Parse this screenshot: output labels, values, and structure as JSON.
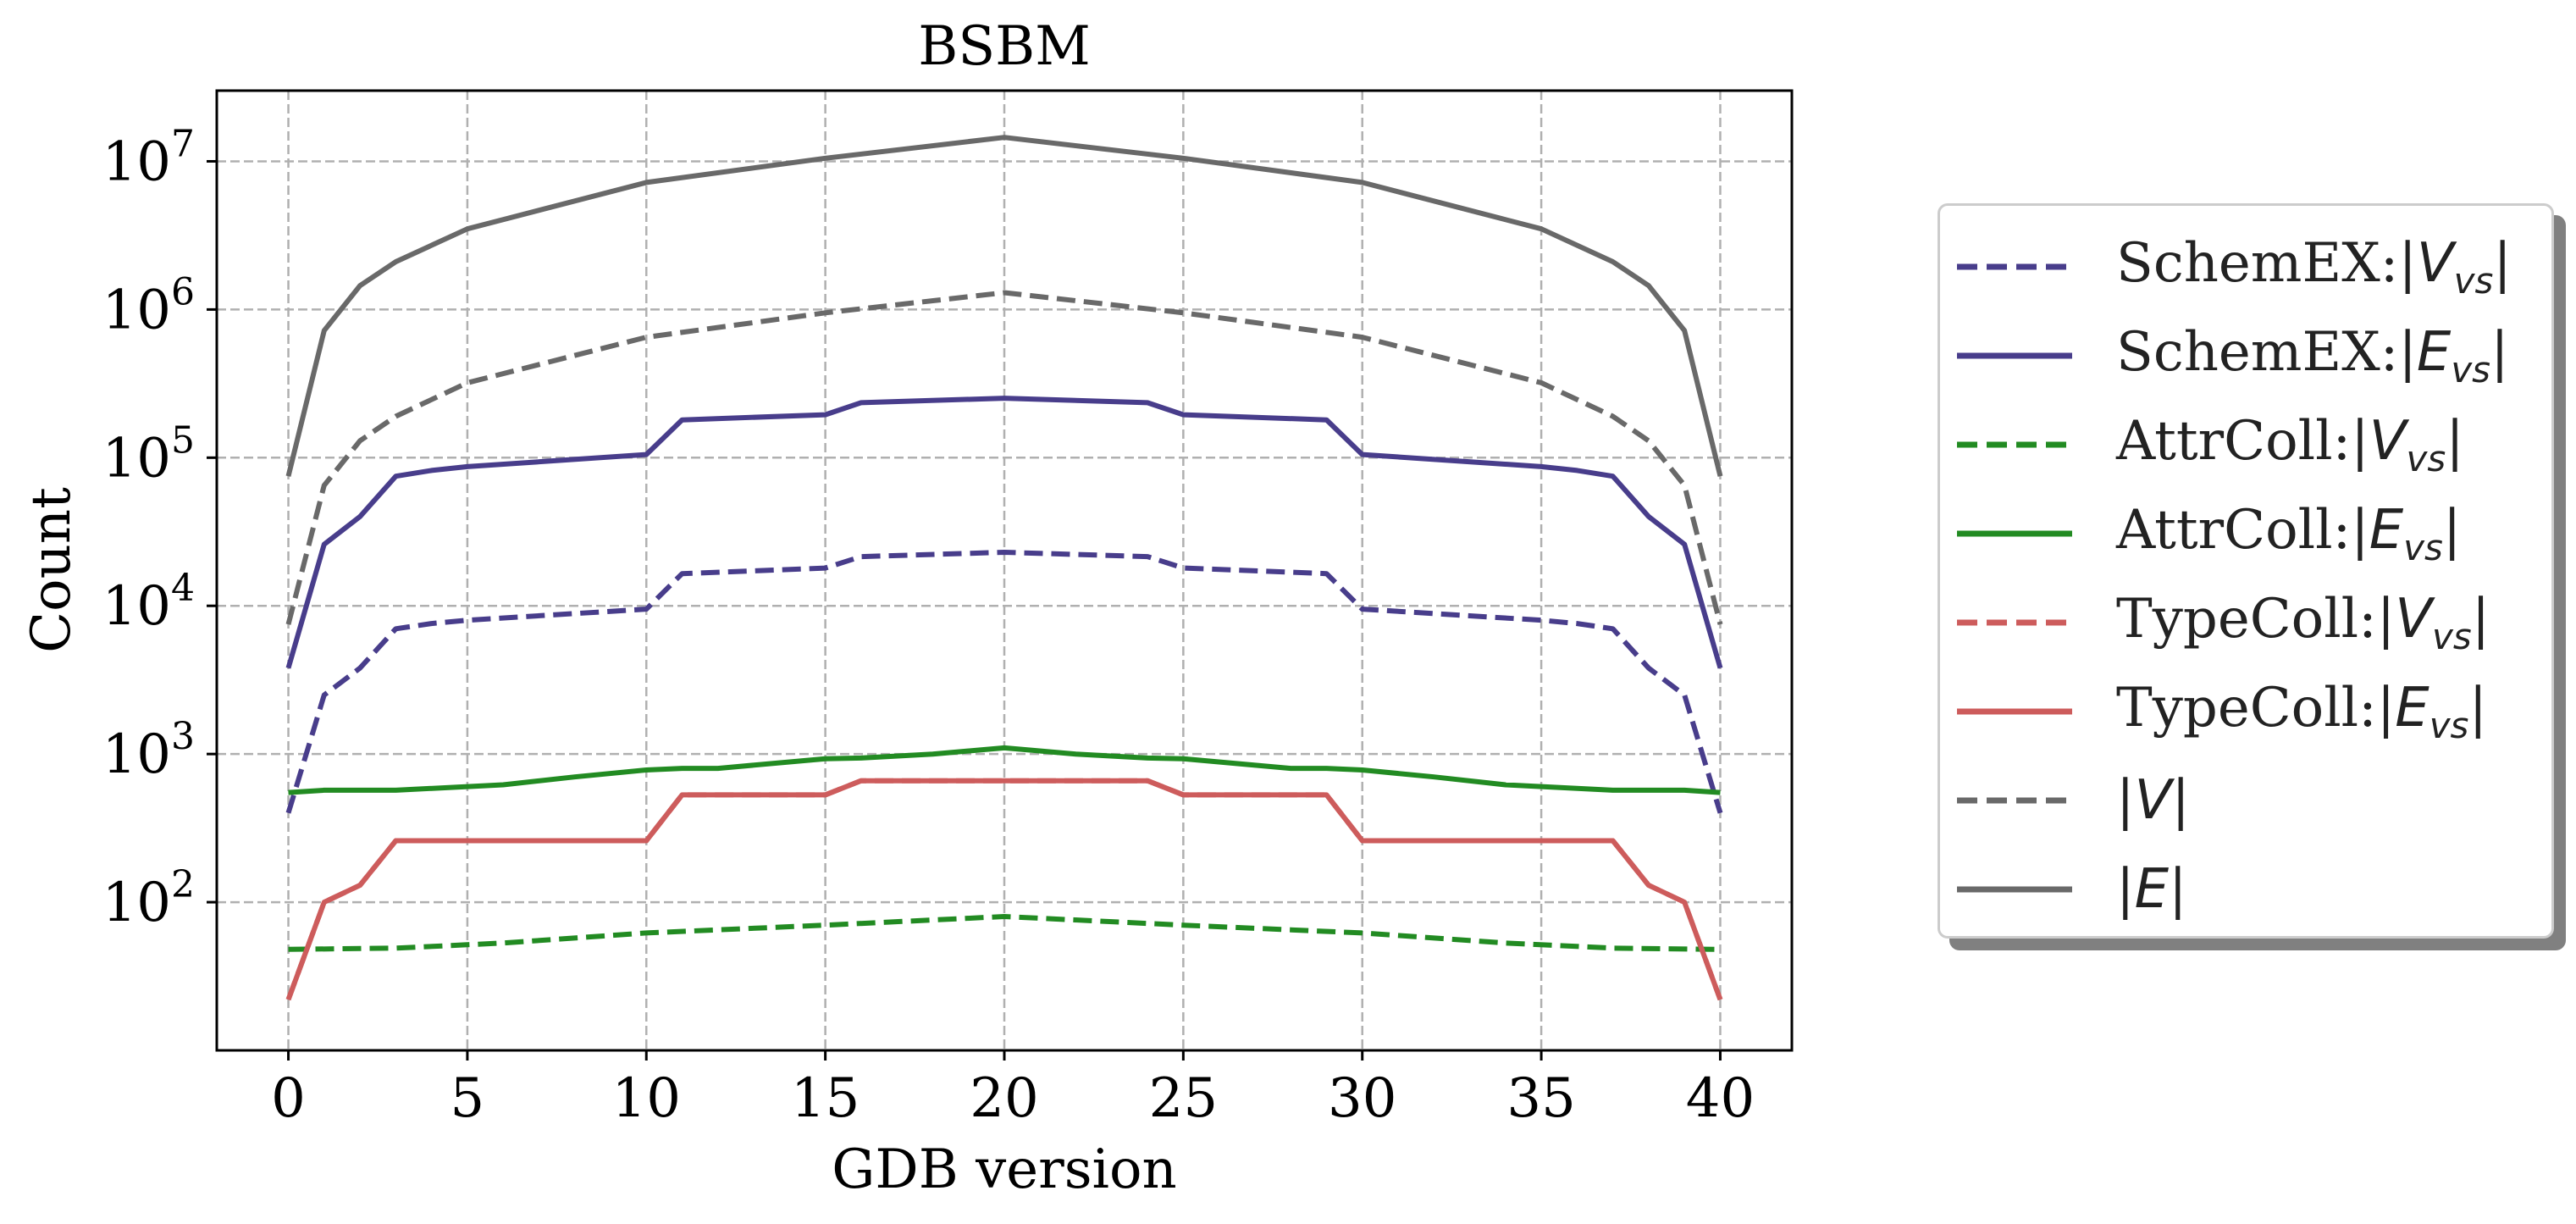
{
  "chart_data": {
    "type": "line",
    "title": "BSBM",
    "xlabel": "GDB version",
    "ylabel": "Count",
    "xlim": [
      -2,
      42
    ],
    "ylim": [
      10,
      30000000
    ],
    "yscale": "log",
    "xticks": [
      0,
      5,
      10,
      15,
      20,
      25,
      30,
      35,
      40
    ],
    "yticks": [
      100,
      1000,
      10000,
      100000,
      1000000,
      10000000
    ],
    "ytick_labels": [
      {
        "base": "10",
        "exp": "2"
      },
      {
        "base": "10",
        "exp": "3"
      },
      {
        "base": "10",
        "exp": "4"
      },
      {
        "base": "10",
        "exp": "5"
      },
      {
        "base": "10",
        "exp": "6"
      },
      {
        "base": "10",
        "exp": "7"
      }
    ],
    "grid": true,
    "legend_position": "outside-right",
    "series": [
      {
        "name": "SchemEX:|V_vs|",
        "label_prefix": "SchemEX:",
        "var": "V",
        "sub": "vs",
        "color": "#483d8b",
        "dash": true,
        "points": [
          [
            0,
            400
          ],
          [
            1,
            2500
          ],
          [
            2,
            3800
          ],
          [
            3,
            7000
          ],
          [
            4,
            7600
          ],
          [
            5,
            8000
          ],
          [
            10,
            9500
          ],
          [
            11,
            16500
          ],
          [
            15,
            18000
          ],
          [
            16,
            21500
          ],
          [
            20,
            23000
          ],
          [
            24,
            21500
          ],
          [
            25,
            18000
          ],
          [
            29,
            16500
          ],
          [
            30,
            9500
          ],
          [
            35,
            8000
          ],
          [
            36,
            7600
          ],
          [
            37,
            7000
          ],
          [
            38,
            3800
          ],
          [
            39,
            2500
          ],
          [
            40,
            400
          ]
        ]
      },
      {
        "name": "SchemEX:|E_vs|",
        "label_prefix": "SchemEX:",
        "var": "E",
        "sub": "vs",
        "color": "#483d8b",
        "dash": false,
        "points": [
          [
            0,
            3800
          ],
          [
            1,
            26000
          ],
          [
            2,
            40000
          ],
          [
            3,
            75000
          ],
          [
            4,
            82000
          ],
          [
            5,
            87000
          ],
          [
            10,
            105000
          ],
          [
            11,
            180000
          ],
          [
            15,
            195000
          ],
          [
            16,
            235000
          ],
          [
            20,
            252000
          ],
          [
            24,
            235000
          ],
          [
            25,
            195000
          ],
          [
            29,
            180000
          ],
          [
            30,
            105000
          ],
          [
            35,
            87000
          ],
          [
            36,
            82000
          ],
          [
            37,
            75000
          ],
          [
            38,
            40000
          ],
          [
            39,
            26000
          ],
          [
            40,
            3800
          ]
        ]
      },
      {
        "name": "AttrColl:|V_vs|",
        "label_prefix": "AttrColl:",
        "var": "V",
        "sub": "vs",
        "color": "#228b22",
        "dash": true,
        "points": [
          [
            0,
            48
          ],
          [
            3,
            49
          ],
          [
            6,
            53
          ],
          [
            10,
            62
          ],
          [
            15,
            70
          ],
          [
            20,
            80
          ],
          [
            25,
            70
          ],
          [
            30,
            62
          ],
          [
            34,
            53
          ],
          [
            37,
            49
          ],
          [
            40,
            48
          ]
        ]
      },
      {
        "name": "AttrColl:|E_vs|",
        "label_prefix": "AttrColl:",
        "var": "E",
        "sub": "vs",
        "color": "#228b22",
        "dash": false,
        "points": [
          [
            0,
            550
          ],
          [
            1,
            570
          ],
          [
            3,
            570
          ],
          [
            6,
            620
          ],
          [
            8,
            700
          ],
          [
            10,
            780
          ],
          [
            11,
            800
          ],
          [
            12,
            800
          ],
          [
            15,
            930
          ],
          [
            16,
            940
          ],
          [
            18,
            1000
          ],
          [
            20,
            1100
          ],
          [
            22,
            1000
          ],
          [
            24,
            940
          ],
          [
            25,
            930
          ],
          [
            28,
            800
          ],
          [
            29,
            800
          ],
          [
            30,
            780
          ],
          [
            32,
            700
          ],
          [
            34,
            620
          ],
          [
            37,
            570
          ],
          [
            39,
            570
          ],
          [
            40,
            550
          ]
        ]
      },
      {
        "name": "TypeColl:|V_vs|",
        "label_prefix": "TypeColl:",
        "var": "V",
        "sub": "vs",
        "color": "#cd5c5c",
        "dash": true,
        "points": [
          [
            0,
            22
          ],
          [
            1,
            100
          ],
          [
            2,
            130
          ],
          [
            3,
            260
          ],
          [
            10,
            260
          ],
          [
            11,
            530
          ],
          [
            15,
            530
          ],
          [
            16,
            660
          ],
          [
            24,
            660
          ],
          [
            25,
            530
          ],
          [
            29,
            530
          ],
          [
            30,
            260
          ],
          [
            37,
            260
          ],
          [
            38,
            130
          ],
          [
            39,
            100
          ],
          [
            40,
            22
          ]
        ]
      },
      {
        "name": "TypeColl:|E_vs|",
        "label_prefix": "TypeColl:",
        "var": "E",
        "sub": "vs",
        "color": "#cd5c5c",
        "dash": false,
        "points": [
          [
            0,
            22
          ],
          [
            1,
            100
          ],
          [
            2,
            130
          ],
          [
            3,
            260
          ],
          [
            10,
            260
          ],
          [
            11,
            530
          ],
          [
            15,
            530
          ],
          [
            16,
            660
          ],
          [
            24,
            660
          ],
          [
            25,
            530
          ],
          [
            29,
            530
          ],
          [
            30,
            260
          ],
          [
            37,
            260
          ],
          [
            38,
            130
          ],
          [
            39,
            100
          ],
          [
            40,
            22
          ]
        ]
      },
      {
        "name": "|V|",
        "label_prefix": "",
        "var": "V",
        "sub": "",
        "color": "#696969",
        "dash": true,
        "points": [
          [
            0,
            7500
          ],
          [
            1,
            65000
          ],
          [
            2,
            130000
          ],
          [
            3,
            190000
          ],
          [
            5,
            320000
          ],
          [
            10,
            650000
          ],
          [
            15,
            950000
          ],
          [
            20,
            1300000
          ],
          [
            25,
            950000
          ],
          [
            30,
            650000
          ],
          [
            35,
            320000
          ],
          [
            37,
            190000
          ],
          [
            38,
            130000
          ],
          [
            39,
            65000
          ],
          [
            40,
            7500
          ]
        ]
      },
      {
        "name": "|E|",
        "label_prefix": "",
        "var": "E",
        "sub": "",
        "color": "#696969",
        "dash": false,
        "points": [
          [
            0,
            75000
          ],
          [
            1,
            720000
          ],
          [
            2,
            1450000
          ],
          [
            3,
            2100000
          ],
          [
            5,
            3500000
          ],
          [
            10,
            7200000
          ],
          [
            15,
            10500000
          ],
          [
            20,
            14500000
          ],
          [
            25,
            10500000
          ],
          [
            30,
            7200000
          ],
          [
            35,
            3500000
          ],
          [
            37,
            2100000
          ],
          [
            38,
            1450000
          ],
          [
            39,
            720000
          ],
          [
            40,
            75000
          ]
        ]
      }
    ]
  }
}
